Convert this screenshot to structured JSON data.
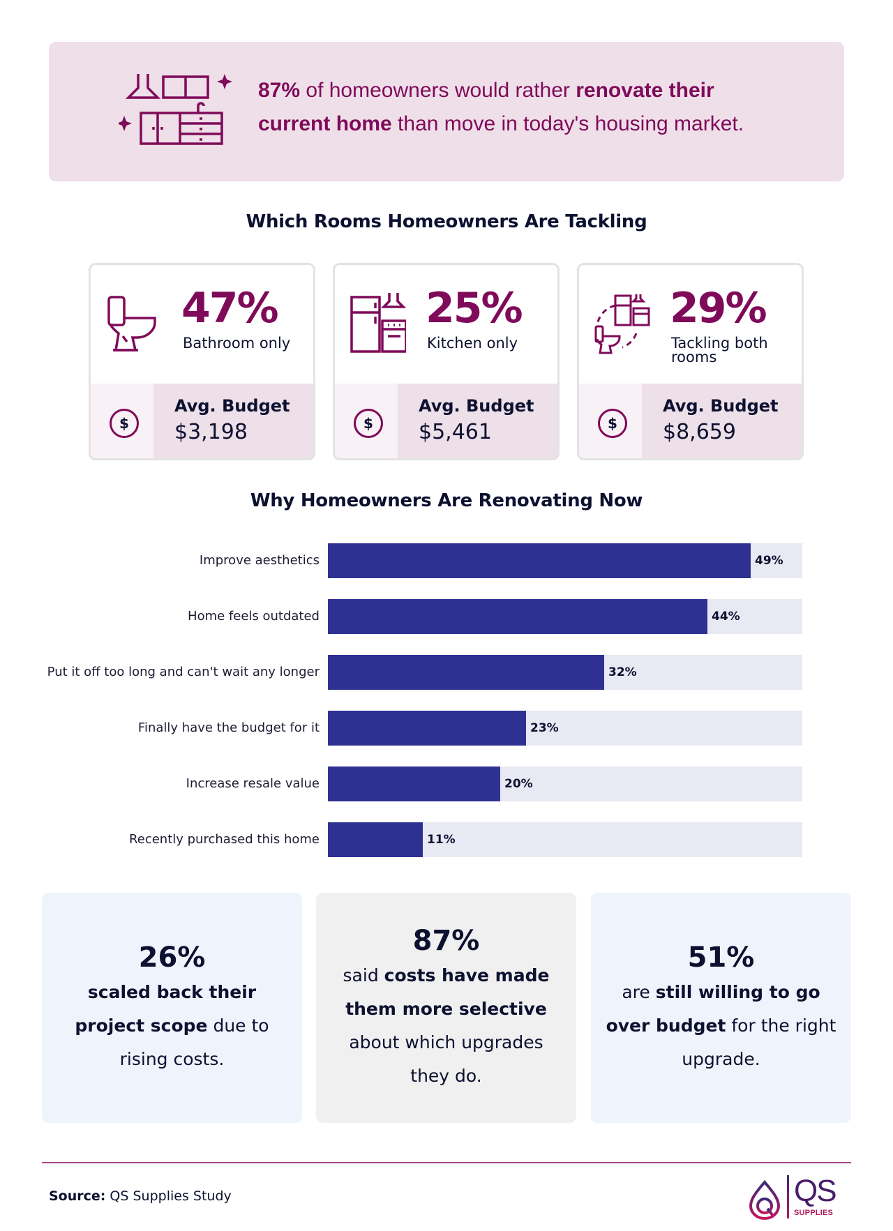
{
  "hero": {
    "pct": "87%",
    "text_1": " of homeowners would rather ",
    "bold_1": "renovate their",
    "bold_2": "current home",
    "text_2": " than move in today's housing market.",
    "icon": "kitchen-cabinets-icon"
  },
  "rooms": {
    "title": "Which Rooms Homeowners Are Tackling",
    "budget_label": "Avg. Budget",
    "dollar_symbol": "$",
    "cards": [
      {
        "pct": "47%",
        "label": "Bathroom only",
        "budget": "$3,198",
        "icon": "toilet-icon"
      },
      {
        "pct": "25%",
        "label": "Kitchen only",
        "budget": "$5,461",
        "icon": "kitchen-icon"
      },
      {
        "pct": "29%",
        "label": "Tackling both rooms",
        "budget": "$8,659",
        "icon": "kitchen-and-bathroom-icon"
      }
    ]
  },
  "reasons": {
    "title": "Why Homeowners Are Renovating Now"
  },
  "chart_data": {
    "type": "bar",
    "orientation": "horizontal",
    "title": "Why Homeowners Are Renovating Now",
    "categories": [
      "Improve aesthetics",
      "Home feels outdated",
      "Put it off too long and can't wait any longer",
      "Finally have the budget for it",
      "Increase resale value",
      "Recently purchased this home"
    ],
    "values": [
      49,
      44,
      32,
      23,
      20,
      11
    ],
    "labels": [
      "49%",
      "44%",
      "32%",
      "23%",
      "20%",
      "11%"
    ],
    "xlim": [
      0,
      55
    ],
    "xlabel": "",
    "ylabel": "",
    "grid": false,
    "bar_color": "#2e3192",
    "track_color": "#e9e9f3"
  },
  "stats": [
    {
      "pct": "26%",
      "pre": "",
      "bold": "scaled back their project scope",
      "post": " due to rising costs."
    },
    {
      "pct": "87%",
      "pre": "said ",
      "bold": "costs have made them more selective",
      "post": " about which upgrades they do."
    },
    {
      "pct": "51%",
      "pre": "are ",
      "bold": "still willing to go over budget",
      "post": " for the right upgrade."
    }
  ],
  "footer": {
    "source_label": "Source:",
    "source_value": " QS Supplies Study",
    "logo_mark": "QS",
    "logo_sub": "SUPPLIES"
  },
  "colors": {
    "brand": "#7f0a59",
    "navy": "#2e3192",
    "text": "#0d1130",
    "hero_bg": "#efdfe9"
  }
}
